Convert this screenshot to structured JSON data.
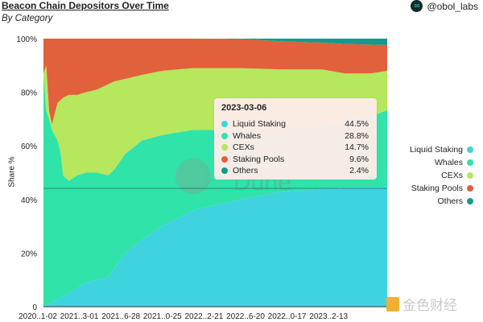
{
  "header": {
    "title": "Beacon Chain Depositors Over Time",
    "subtitle": "By Category",
    "brand": "@obol_labs",
    "brand_icon": "obol-logo-icon"
  },
  "watermarks": {
    "dune": "Dune",
    "jinse": "金色财经"
  },
  "tooltip": {
    "date": "2023-03-06",
    "rows": [
      {
        "label": "Liquid Staking",
        "value": "44.5%"
      },
      {
        "label": "Whales",
        "value": "28.8%"
      },
      {
        "label": "CEXs",
        "value": "14.7%"
      },
      {
        "label": "Staking Pools",
        "value": "9.6%"
      },
      {
        "label": "Others",
        "value": "2.4%"
      }
    ]
  },
  "chart_data": {
    "type": "area",
    "stacked": true,
    "normalized": true,
    "title": "Beacon Chain Depositors Over Time",
    "subtitle": "By Category",
    "xlabel": "",
    "ylabel": "Share %",
    "ylim": [
      0,
      100
    ],
    "yticks": [
      "0",
      "20%",
      "40%",
      "60%",
      "80%",
      "100%"
    ],
    "xticks": [
      "2020..1-02",
      "2021..3-01",
      "2021..6-28",
      "2021..0-25",
      "2022..2-21",
      "2022..6-20",
      "2022..0-17",
      "2023..2-13"
    ],
    "legend_position": "right",
    "grid": false,
    "x": [
      "2020-11-02",
      "2020-11-09",
      "2020-11-16",
      "2020-11-23",
      "2020-12-07",
      "2020-12-14",
      "2020-12-21",
      "2021-01-04",
      "2021-01-25",
      "2021-02-15",
      "2021-03-15",
      "2021-04-12",
      "2021-04-26",
      "2021-05-24",
      "2021-07-05",
      "2021-08-23",
      "2021-11-08",
      "2022-03-07",
      "2022-06-20",
      "2022-09-26",
      "2022-11-21",
      "2023-01-23",
      "2023-03-06"
    ],
    "series": [
      {
        "name": "Liquid Staking",
        "color": "#3fd3df",
        "values": [
          0,
          0.5,
          1,
          1.5,
          3,
          3,
          4,
          5,
          7,
          9,
          10,
          11,
          14,
          20,
          25,
          30,
          36,
          40,
          43,
          44,
          44.5,
          44.5,
          44.5
        ]
      },
      {
        "name": "Whales",
        "color": "#2fe3a9",
        "values": [
          87,
          72.5,
          69,
          64.5,
          59,
          55,
          45,
          42,
          42,
          41,
          40,
          38,
          37,
          37,
          37,
          34,
          30,
          26,
          23,
          23,
          24.5,
          26.5,
          28.8
        ]
      },
      {
        "name": "CEXs",
        "color": "#b6e75c",
        "values": [
          0,
          17,
          3,
          2,
          14,
          19,
          29,
          32,
          30,
          30,
          31,
          34,
          33,
          28,
          24.5,
          24,
          23,
          23,
          22.5,
          21.5,
          18,
          16,
          14.7
        ]
      },
      {
        "name": "Staking Pools",
        "color": "#e0613b",
        "values": [
          13,
          10,
          27,
          32,
          24,
          23,
          22,
          21,
          21,
          20,
          19,
          17,
          16,
          15,
          13.5,
          12,
          11,
          10.8,
          10.5,
          10,
          11,
          10.8,
          9.6
        ]
      },
      {
        "name": "Others",
        "color": "#17998a",
        "values": [
          0,
          0,
          0,
          0,
          0,
          0,
          0,
          0,
          0,
          0,
          0,
          0,
          0,
          0,
          0,
          0,
          0,
          0.2,
          1,
          1.5,
          2,
          2.2,
          2.4
        ]
      }
    ]
  }
}
